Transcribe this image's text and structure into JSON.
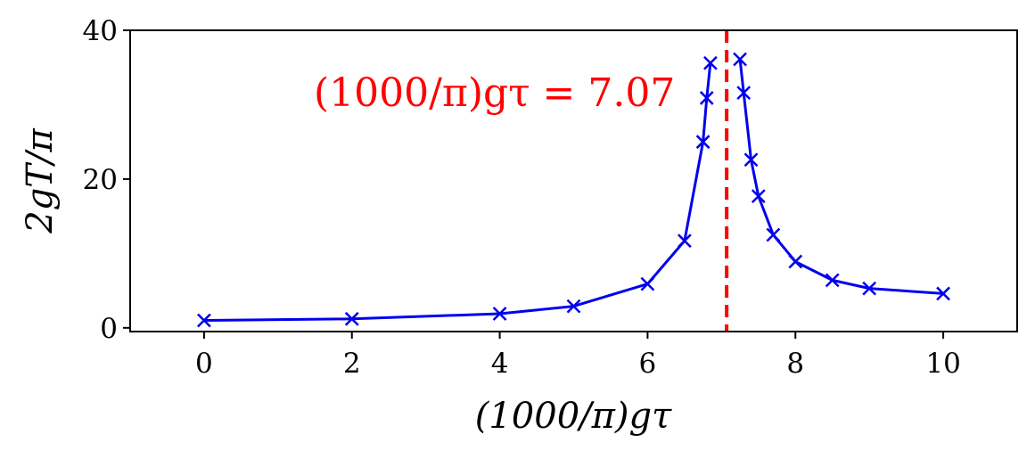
{
  "chart_data": {
    "type": "line",
    "title": "",
    "xlabel": "(1000/π)gτ",
    "ylabel": "2gT/π",
    "xlim": [
      -1,
      11
    ],
    "ylim": [
      -0.5,
      40
    ],
    "x_ticks": [
      0,
      2,
      4,
      6,
      8,
      10
    ],
    "x_tick_labels": [
      "0",
      "2",
      "4",
      "6",
      "8",
      "10"
    ],
    "y_ticks": [
      0,
      20,
      40
    ],
    "y_tick_labels": [
      "0",
      "20",
      "40"
    ],
    "grid": false,
    "series": [
      {
        "color": "#0000ee",
        "marker": "x",
        "segments": [
          {
            "x": [
              0,
              2,
              4,
              5,
              6,
              6.5,
              6.75,
              6.8,
              6.85
            ],
            "y": [
              1.0,
              1.2,
              1.9,
              2.9,
              5.9,
              11.7,
              25.0,
              30.9,
              35.6
            ]
          },
          {
            "x": [
              7.25,
              7.3,
              7.4,
              7.5,
              7.7,
              8.0,
              8.5,
              9.0,
              10.0
            ],
            "y": [
              36.1,
              31.6,
              22.6,
              17.7,
              12.5,
              8.9,
              6.4,
              5.3,
              4.6
            ]
          }
        ]
      }
    ],
    "vline": {
      "x": 7.07,
      "color": "#ff0000",
      "style": "dashed"
    },
    "annotation": {
      "text": "(1000/π)gτ = 7.07",
      "color": "#ff0000"
    }
  }
}
